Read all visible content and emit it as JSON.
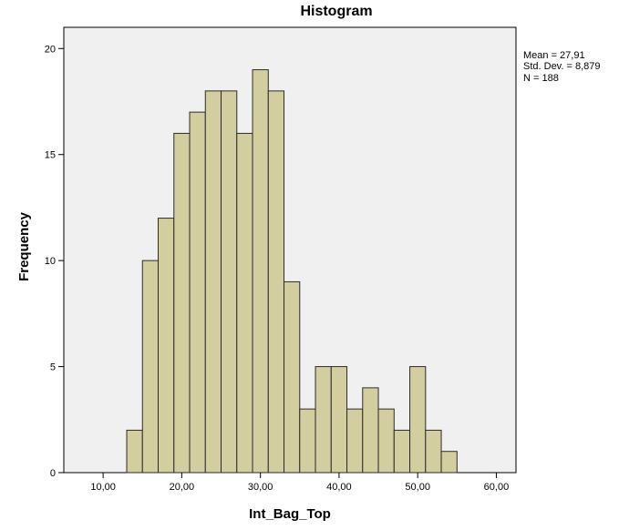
{
  "chart_data": {
    "type": "bar",
    "title": "Histogram",
    "xlabel": "Int_Bag_Top",
    "ylabel": "Frequency",
    "xlim": [
      5,
      62.5
    ],
    "ylim": [
      0,
      21
    ],
    "x_ticks": [
      {
        "value": 10,
        "label": "10,00"
      },
      {
        "value": 20,
        "label": "20,00"
      },
      {
        "value": 30,
        "label": "30,00"
      },
      {
        "value": 40,
        "label": "40,00"
      },
      {
        "value": 50,
        "label": "50,00"
      },
      {
        "value": 60,
        "label": "60,00"
      }
    ],
    "y_ticks": [
      {
        "value": 0,
        "label": "0"
      },
      {
        "value": 5,
        "label": "5"
      },
      {
        "value": 10,
        "label": "10"
      },
      {
        "value": 15,
        "label": "15"
      },
      {
        "value": 20,
        "label": "20"
      }
    ],
    "bin_width": 2,
    "bin_starts": [
      13,
      15,
      17,
      19,
      21,
      23,
      25,
      27,
      29,
      31,
      33,
      35,
      37,
      39,
      41,
      43,
      45,
      47,
      49,
      51,
      53
    ],
    "values": [
      2,
      10,
      12,
      16,
      17,
      18,
      18,
      16,
      19,
      18,
      9,
      3,
      5,
      5,
      3,
      4,
      3,
      2,
      5,
      2,
      1
    ],
    "stats": [
      "Mean = 27,91",
      "Std. Dev. = 8,879",
      "N = 188"
    ],
    "grid": false,
    "legend": "none",
    "colors": {
      "bar_fill": "#d3cea0",
      "bar_stroke": "#2b2b2b",
      "plot_background": "#f0f0f0"
    }
  }
}
